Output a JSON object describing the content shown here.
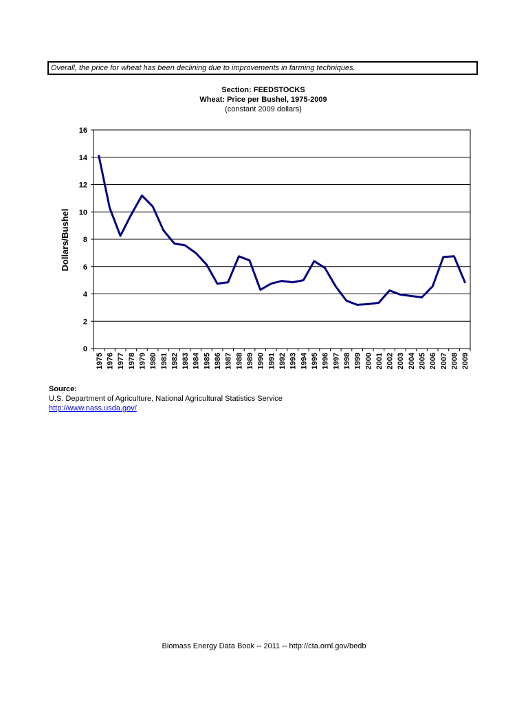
{
  "note": "Overall, the price for wheat has been declining due to improvements in farming techniques.",
  "header": {
    "section": "Section: FEEDSTOCKS",
    "title": "Wheat: Price per Bushel, 1975-2009",
    "subtitle": "(constant 2009 dollars)"
  },
  "chart_data": {
    "type": "line",
    "title": "Wheat: Price per Bushel, 1975-2009",
    "subtitle": "(constant 2009 dollars)",
    "xlabel": "",
    "ylabel": "Dollars/Bushel",
    "ylim": [
      0,
      16
    ],
    "yticks": [
      0,
      2,
      4,
      6,
      8,
      10,
      12,
      14,
      16
    ],
    "grid": true,
    "legend": "none",
    "line_color": "#000080",
    "categories": [
      "1975",
      "1976",
      "1977",
      "1978",
      "1979",
      "1980",
      "1981",
      "1982",
      "1983",
      "1984",
      "1985",
      "1986",
      "1987",
      "1988",
      "1989",
      "1990",
      "1991",
      "1992",
      "1993",
      "1994",
      "1995",
      "1996",
      "1997",
      "1998",
      "1999",
      "2000",
      "2001",
      "2002",
      "2003",
      "2004",
      "2005",
      "2006",
      "2007",
      "2008",
      "2009"
    ],
    "values": [
      14.1,
      10.3,
      8.25,
      9.8,
      11.2,
      10.4,
      8.65,
      7.7,
      7.55,
      7.0,
      6.15,
      4.75,
      4.85,
      6.75,
      6.45,
      4.3,
      4.75,
      4.95,
      4.85,
      5.0,
      6.4,
      5.9,
      4.55,
      3.5,
      3.2,
      3.25,
      3.35,
      4.25,
      3.95,
      3.85,
      3.75,
      4.55,
      6.7,
      6.75,
      4.85
    ]
  },
  "source": {
    "label": "Source:",
    "agency": "U.S. Department of Agriculture, National Agricultural Statistics Service",
    "url": "http://www.nass.usda.gov/"
  },
  "footer": "Biomass Energy Data Book -- 2011 -- http://cta.ornl.gov/bedb"
}
